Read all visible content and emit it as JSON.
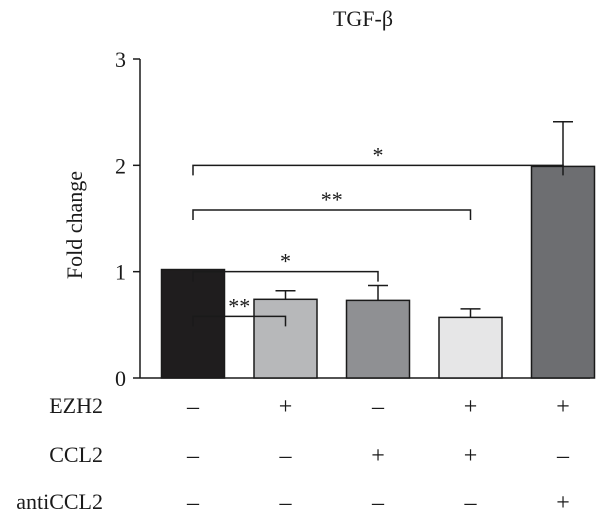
{
  "chart_data": {
    "type": "bar",
    "title": "TGF-β",
    "xlabel": "",
    "ylabel": "Fold change",
    "ylim": [
      0,
      3
    ],
    "yticks": [
      "0",
      "1",
      "2",
      "3"
    ],
    "grid": false,
    "legend": "none",
    "bars": [
      {
        "value": 1.02,
        "error": 0.0,
        "color": "#1f1d1e"
      },
      {
        "value": 0.74,
        "error": 0.08,
        "color": "#b7b8ba"
      },
      {
        "value": 0.73,
        "error": 0.14,
        "color": "#8f9093"
      },
      {
        "value": 0.57,
        "error": 0.08,
        "color": "#e6e6e7"
      },
      {
        "value": 1.99,
        "error": 0.42,
        "color": "#6d6e71"
      }
    ],
    "conditions": [
      {
        "label": "EZH2",
        "values": [
          "–",
          "+",
          "–",
          "+",
          "+"
        ]
      },
      {
        "label": "CCL2",
        "values": [
          "–",
          "–",
          "+",
          "+",
          "–"
        ]
      },
      {
        "label": "antiCCL2",
        "values": [
          "–",
          "–",
          "–",
          "–",
          "+"
        ]
      }
    ],
    "significance": [
      {
        "from": 0,
        "to": 1,
        "y": 0.58,
        "label": "**"
      },
      {
        "from": 0,
        "to": 2,
        "y": 1.0,
        "label": "*"
      },
      {
        "from": 0,
        "to": 3,
        "y": 1.58,
        "label": "**"
      },
      {
        "from": 0,
        "to": 4,
        "y": 2.0,
        "label": "*"
      }
    ]
  }
}
